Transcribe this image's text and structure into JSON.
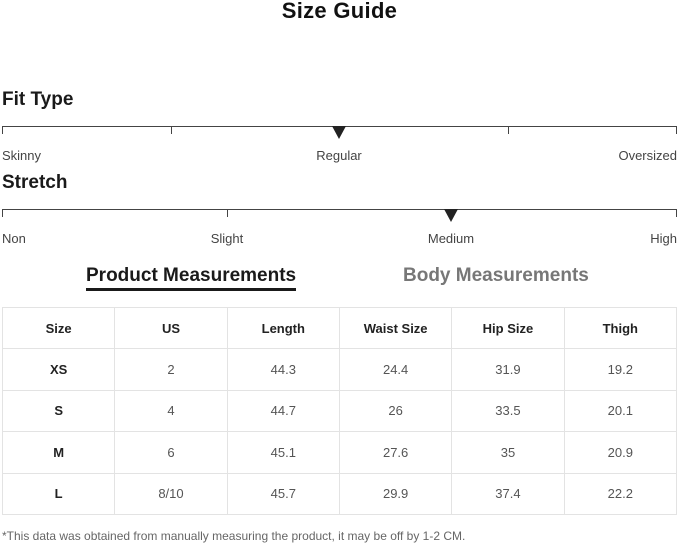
{
  "title": "Size Guide",
  "fit": {
    "label": "Fit Type",
    "options": [
      "Skinny",
      "Regular",
      "Oversized"
    ],
    "selected": "Regular"
  },
  "stretch": {
    "label": "Stretch",
    "options": [
      "Non",
      "Slight",
      "Medium",
      "High"
    ],
    "selected": "Medium"
  },
  "tabs": [
    {
      "label": "Product Measurements",
      "active": true
    },
    {
      "label": "Body Measurements",
      "active": false
    }
  ],
  "table": {
    "headers": [
      "Size",
      "US",
      "Length",
      "Waist Size",
      "Hip Size",
      "Thigh"
    ],
    "rows": [
      [
        "XS",
        "2",
        "44.3",
        "24.4",
        "31.9",
        "19.2"
      ],
      [
        "S",
        "4",
        "44.7",
        "26",
        "33.5",
        "20.1"
      ],
      [
        "M",
        "6",
        "45.1",
        "27.6",
        "35",
        "20.9"
      ],
      [
        "L",
        "8/10",
        "45.7",
        "29.9",
        "37.4",
        "22.2"
      ]
    ]
  },
  "note": "*This data was obtained from manually measuring the product, it may be off by 1-2 CM."
}
